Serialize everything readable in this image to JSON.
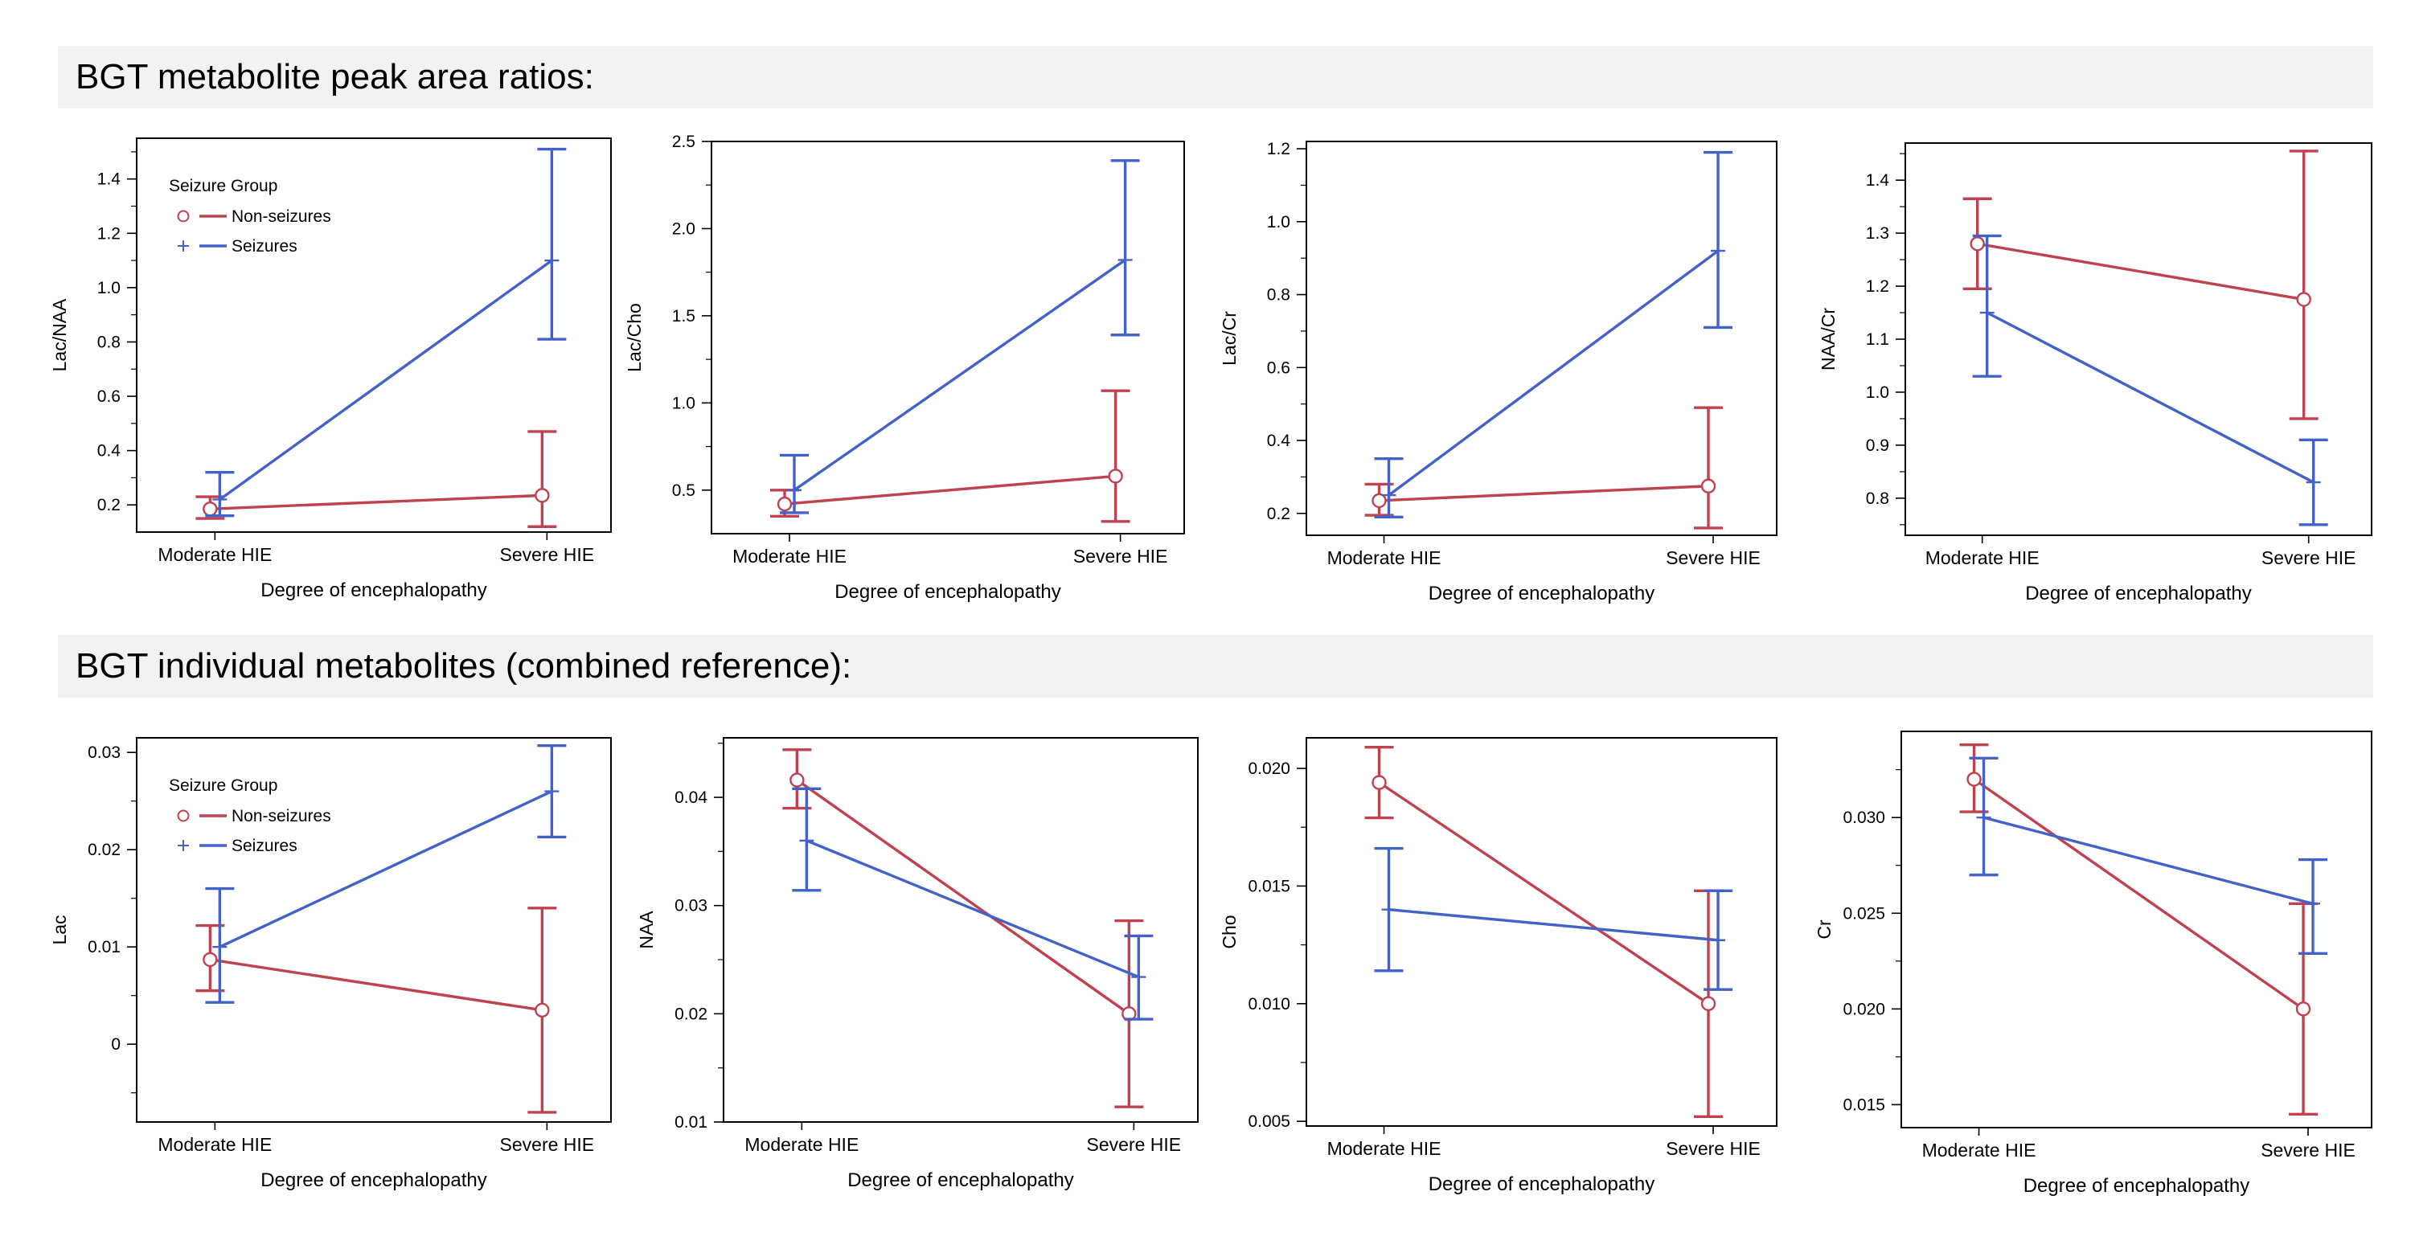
{
  "sections": [
    {
      "title": "BGT metabolite peak area ratios:"
    },
    {
      "title": "BGT individual metabolites (combined reference):"
    }
  ],
  "colors": {
    "non_seizures": "#c0424f",
    "seizures": "#4262c9"
  },
  "legend": {
    "title": "Seizure Group",
    "entries": [
      {
        "name": "Non-seizures",
        "marker": "circle",
        "color": "#c0424f"
      },
      {
        "name": "Seizures",
        "marker": "plus",
        "color": "#4262c9"
      }
    ]
  },
  "chart_data": [
    {
      "type": "line",
      "ylabel": "Lac/NAA",
      "xlabel": "Degree of encephalopathy",
      "categories": [
        "Moderate HIE",
        "Severe HIE"
      ],
      "ylim": [
        0.1,
        1.55
      ],
      "yticks": [
        0.2,
        0.4,
        0.6,
        0.8,
        1.0,
        1.2,
        1.4
      ],
      "tick_decimals": 1,
      "legend": true,
      "series": [
        {
          "name": "Non-seizures",
          "values": [
            0.185,
            0.235
          ],
          "lower": [
            0.15,
            0.12
          ],
          "upper": [
            0.23,
            0.47
          ]
        },
        {
          "name": "Seizures",
          "values": [
            0.22,
            1.1
          ],
          "lower": [
            0.16,
            0.81
          ],
          "upper": [
            0.32,
            1.51
          ]
        }
      ]
    },
    {
      "type": "line",
      "ylabel": "Lac/Cho",
      "xlabel": "Degree of encephalopathy",
      "categories": [
        "Moderate HIE",
        "Severe HIE"
      ],
      "ylim": [
        0.25,
        2.5
      ],
      "yticks": [
        0.5,
        1.0,
        1.5,
        2.0,
        2.5
      ],
      "tick_decimals": 1,
      "legend": false,
      "series": [
        {
          "name": "Non-seizures",
          "values": [
            0.42,
            0.58
          ],
          "lower": [
            0.35,
            0.32
          ],
          "upper": [
            0.5,
            1.07
          ]
        },
        {
          "name": "Seizures",
          "values": [
            0.5,
            1.82
          ],
          "lower": [
            0.37,
            1.39
          ],
          "upper": [
            0.7,
            2.39
          ]
        }
      ]
    },
    {
      "type": "line",
      "ylabel": "Lac/Cr",
      "xlabel": "Degree of encephalopathy",
      "categories": [
        "Moderate HIE",
        "Severe HIE"
      ],
      "ylim": [
        0.14,
        1.22
      ],
      "yticks": [
        0.2,
        0.4,
        0.6,
        0.8,
        1.0,
        1.2
      ],
      "tick_decimals": 1,
      "legend": false,
      "series": [
        {
          "name": "Non-seizures",
          "values": [
            0.235,
            0.275
          ],
          "lower": [
            0.195,
            0.16
          ],
          "upper": [
            0.28,
            0.49
          ]
        },
        {
          "name": "Seizures",
          "values": [
            0.25,
            0.92
          ],
          "lower": [
            0.19,
            0.71
          ],
          "upper": [
            0.35,
            1.19
          ]
        }
      ]
    },
    {
      "type": "line",
      "ylabel": "NAA/Cr",
      "xlabel": "Degree of encephalopathy",
      "categories": [
        "Moderate HIE",
        "Severe HIE"
      ],
      "ylim": [
        0.73,
        1.47
      ],
      "yticks": [
        0.8,
        0.9,
        1.0,
        1.1,
        1.2,
        1.3,
        1.4
      ],
      "tick_decimals": 1,
      "legend": false,
      "series": [
        {
          "name": "Non-seizures",
          "values": [
            1.28,
            1.175
          ],
          "lower": [
            1.195,
            0.95
          ],
          "upper": [
            1.365,
            1.455
          ]
        },
        {
          "name": "Seizures",
          "values": [
            1.15,
            0.83
          ],
          "lower": [
            1.03,
            0.75
          ],
          "upper": [
            1.295,
            0.91
          ]
        }
      ]
    },
    {
      "type": "line",
      "ylabel": "Lac",
      "xlabel": "Degree of encephalopathy",
      "categories": [
        "Moderate HIE",
        "Severe HIE"
      ],
      "ylim": [
        -0.008,
        0.0315
      ],
      "yticks": [
        0,
        0.01,
        0.02,
        0.03
      ],
      "tick_labels": [
        "0",
        "0.01",
        "0.02",
        "0.03"
      ],
      "legend": true,
      "series": [
        {
          "name": "Non-seizures",
          "values": [
            0.0087,
            0.0035
          ],
          "lower": [
            0.0055,
            -0.007
          ],
          "upper": [
            0.0122,
            0.014
          ]
        },
        {
          "name": "Seizures",
          "values": [
            0.01,
            0.026
          ],
          "lower": [
            0.0043,
            0.0213
          ],
          "upper": [
            0.016,
            0.0307
          ]
        }
      ]
    },
    {
      "type": "line",
      "ylabel": "NAA",
      "xlabel": "Degree of encephalopathy",
      "categories": [
        "Moderate HIE",
        "Severe HIE"
      ],
      "ylim": [
        0.01,
        0.0455
      ],
      "yticks": [
        0.01,
        0.02,
        0.03,
        0.04
      ],
      "tick_decimals": 2,
      "legend": false,
      "series": [
        {
          "name": "Non-seizures",
          "values": [
            0.0416,
            0.02
          ],
          "lower": [
            0.039,
            0.0114
          ],
          "upper": [
            0.0444,
            0.0286
          ]
        },
        {
          "name": "Seizures",
          "values": [
            0.036,
            0.0234
          ],
          "lower": [
            0.0314,
            0.0195
          ],
          "upper": [
            0.0408,
            0.0272
          ]
        }
      ]
    },
    {
      "type": "line",
      "ylabel": "Cho",
      "xlabel": "Degree of encephalopathy",
      "categories": [
        "Moderate HIE",
        "Severe HIE"
      ],
      "ylim": [
        0.0048,
        0.0213
      ],
      "yticks": [
        0.005,
        0.01,
        0.015,
        0.02
      ],
      "tick_decimals": 3,
      "legend": false,
      "series": [
        {
          "name": "Non-seizures",
          "values": [
            0.0194,
            0.01
          ],
          "lower": [
            0.0179,
            0.0052
          ],
          "upper": [
            0.0209,
            0.0148
          ]
        },
        {
          "name": "Seizures",
          "values": [
            0.014,
            0.0127
          ],
          "lower": [
            0.0114,
            0.0106
          ],
          "upper": [
            0.0166,
            0.0148
          ]
        }
      ]
    },
    {
      "type": "line",
      "ylabel": "Cr",
      "xlabel": "Degree of encephalopathy",
      "categories": [
        "Moderate HIE",
        "Severe HIE"
      ],
      "ylim": [
        0.0138,
        0.0345
      ],
      "yticks": [
        0.015,
        0.02,
        0.025,
        0.03
      ],
      "tick_decimals": 3,
      "legend": false,
      "series": [
        {
          "name": "Non-seizures",
          "values": [
            0.032,
            0.02
          ],
          "lower": [
            0.0303,
            0.0145
          ],
          "upper": [
            0.0338,
            0.0255
          ]
        },
        {
          "name": "Seizures",
          "values": [
            0.03,
            0.0255
          ],
          "lower": [
            0.027,
            0.0229
          ],
          "upper": [
            0.0331,
            0.0278
          ]
        }
      ]
    }
  ]
}
